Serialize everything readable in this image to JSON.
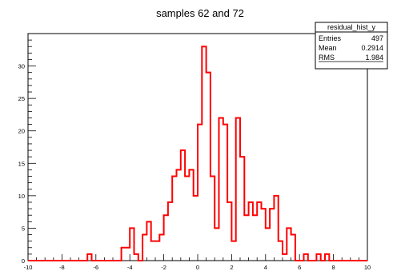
{
  "chart_data": {
    "type": "bar",
    "title": "samples 62 and 72",
    "xlabel": "",
    "ylabel": "",
    "xlim": [
      -10,
      10
    ],
    "ylim": [
      0,
      35
    ],
    "bin_width": 0.25,
    "x_ticks": [
      -10,
      -8,
      -6,
      -4,
      -2,
      0,
      2,
      4,
      6,
      8,
      10
    ],
    "x_tick_labels": [
      "-10",
      "-8",
      "-6",
      "-4",
      "-2",
      "0",
      "2",
      "4",
      "6",
      "8",
      "10"
    ],
    "y_ticks": [
      0,
      5,
      10,
      15,
      20,
      25,
      30
    ],
    "y_tick_labels": [
      "0",
      "5",
      "10",
      "15",
      "20",
      "25",
      "30"
    ],
    "series": [
      {
        "x": [
          -10.0,
          -9.75,
          -9.5,
          -9.25,
          -9.0,
          -8.75,
          -8.5,
          -8.25,
          -8.0,
          -7.75,
          -7.5,
          -7.25,
          -7.0,
          -6.75,
          -6.5,
          -6.25,
          -6.0,
          -5.75,
          -5.5,
          -5.25,
          -5.0,
          -4.75,
          -4.5,
          -4.25,
          -4.0,
          -3.75,
          -3.5,
          -3.25,
          -3.0,
          -2.75,
          -2.5,
          -2.25,
          -2.0,
          -1.75,
          -1.5,
          -1.25,
          -1.0,
          -0.75,
          -0.5,
          -0.25,
          0.0,
          0.25,
          0.5,
          0.75,
          1.0,
          1.25,
          1.5,
          1.75,
          2.0,
          2.25,
          2.5,
          2.75,
          3.0,
          3.25,
          3.5,
          3.75,
          4.0,
          4.25,
          4.5,
          4.75,
          5.0,
          5.25,
          5.5,
          5.75,
          6.0,
          6.25,
          6.5,
          6.75,
          7.0,
          7.25,
          7.5,
          7.75,
          8.0,
          8.25,
          8.5,
          8.75,
          9.0,
          9.25,
          9.5,
          9.75
        ],
        "values": [
          0,
          0,
          0,
          0,
          0,
          0,
          0,
          0,
          0,
          0,
          0,
          0,
          0,
          0,
          1,
          0,
          0,
          0,
          0,
          0,
          0,
          0,
          2,
          2,
          5,
          1,
          0,
          4,
          6,
          3,
          3,
          4,
          7,
          9,
          13,
          14,
          17,
          13,
          14,
          10,
          21,
          33,
          29,
          13,
          5,
          22,
          21,
          9,
          3,
          22,
          16,
          7,
          9,
          7,
          9,
          8,
          5,
          8,
          10,
          3,
          1,
          5,
          4,
          0,
          0,
          1,
          0,
          0,
          1,
          0,
          1,
          0,
          0,
          0,
          0,
          0,
          0,
          0,
          0,
          0
        ],
        "color": "#ff0000"
      }
    ]
  },
  "stats_box": {
    "header": "residual_hist_y",
    "rows": [
      {
        "label": "Entries",
        "value": "497"
      },
      {
        "label": "Mean",
        "value": "0.2914"
      },
      {
        "label": "RMS",
        "value": "1.984"
      }
    ]
  },
  "colors": {
    "background": "#ffffff",
    "axis": "#000000",
    "histogram": "#ff0000"
  }
}
